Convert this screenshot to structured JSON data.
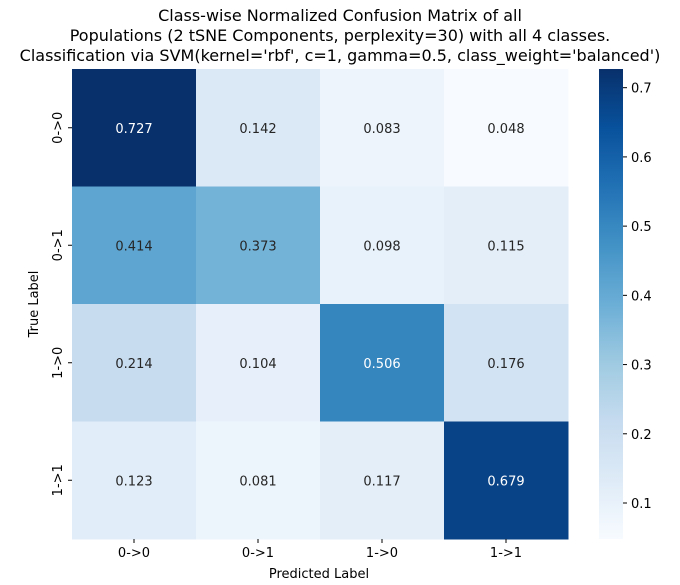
{
  "chart_data": {
    "type": "heatmap",
    "title": [
      "Class-wise Normalized Confusion Matrix of all",
      "Populations (2 tSNE Components, perplexity=30) with all 4 classes.",
      "Classification via SVM(kernel='rbf', c=1, gamma=0.5, class_weight='balanced')"
    ],
    "xlabel": "Predicted Label",
    "ylabel": "True Label",
    "x_categories": [
      "0->0",
      "0->1",
      "1->0",
      "1->1"
    ],
    "y_categories": [
      "0->0",
      "0->1",
      "1->0",
      "1->1"
    ],
    "values": [
      [
        0.727,
        0.142,
        0.083,
        0.048
      ],
      [
        0.414,
        0.373,
        0.098,
        0.115
      ],
      [
        0.214,
        0.104,
        0.506,
        0.176
      ],
      [
        0.123,
        0.081,
        0.117,
        0.679
      ]
    ],
    "cell_labels": [
      [
        "0.727",
        "0.142",
        "0.083",
        "0.048"
      ],
      [
        "0.414",
        "0.373",
        "0.098",
        "0.115"
      ],
      [
        "0.214",
        "0.104",
        "0.506",
        "0.176"
      ],
      [
        "0.123",
        "0.081",
        "0.117",
        "0.679"
      ]
    ],
    "colormap": "Blues",
    "colorbar": {
      "range": [
        0.048,
        0.727
      ],
      "ticks": [
        0.1,
        0.2,
        0.3,
        0.4,
        0.5,
        0.6,
        0.7
      ],
      "tick_labels": [
        "0.1",
        "0.2",
        "0.3",
        "0.4",
        "0.5",
        "0.6",
        "0.7"
      ]
    },
    "grid": false
  }
}
